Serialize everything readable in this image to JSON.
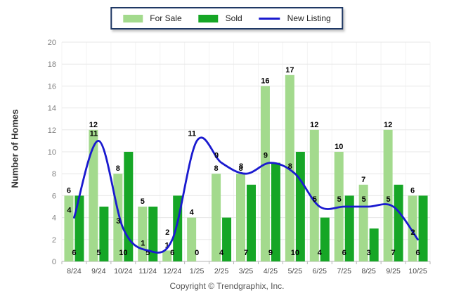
{
  "chart_data": {
    "type": "bar+line",
    "title": "",
    "ylabel": "Number of Homes",
    "xlabel": "",
    "ylim": [
      0,
      20
    ],
    "yticks": [
      0,
      2,
      4,
      6,
      8,
      10,
      12,
      14,
      16,
      18,
      20
    ],
    "grid": true,
    "legend_position": "top-center",
    "categories": [
      "8/24",
      "9/24",
      "10/24",
      "11/24",
      "12/24",
      "1/25",
      "2/25",
      "3/25",
      "4/25",
      "5/25",
      "6/25",
      "7/25",
      "8/25",
      "9/25",
      "10/25"
    ],
    "series": [
      {
        "name": "For Sale",
        "type": "bar",
        "color": "#A3DA8D",
        "values": [
          6,
          12,
          8,
          5,
          1,
          4,
          8,
          8,
          16,
          17,
          12,
          10,
          7,
          12,
          6
        ]
      },
      {
        "name": "Sold",
        "type": "bar",
        "color": "#16A626",
        "values": [
          6,
          5,
          10,
          5,
          6,
          0,
          4,
          7,
          9,
          10,
          4,
          6,
          3,
          7,
          6
        ]
      },
      {
        "name": "New Listing",
        "type": "line",
        "color": "#1A1ACF",
        "values": [
          4,
          11,
          3,
          1,
          2,
          11,
          9,
          8,
          9,
          8,
          5,
          5,
          5,
          5,
          2
        ]
      }
    ],
    "colors": {
      "grid_h": "#e7e7e7",
      "grid_v": "#f3f3f3",
      "axis": "#b5b5b5",
      "ytick_text": "#808080",
      "xtick_text": "#454545",
      "value_label": "#000000",
      "legend_border": "#1f3864"
    }
  },
  "footer": {
    "copyright": "Copyright © Trendgraphix, Inc."
  }
}
